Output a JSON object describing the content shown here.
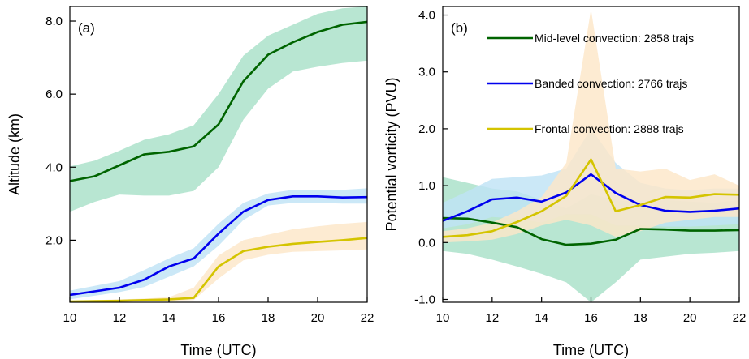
{
  "chart_data": [
    {
      "type": "line",
      "panel_label": "(a)",
      "xlabel": "Time (UTC)",
      "ylabel": "Altitude (km)",
      "xlim": [
        10,
        22
      ],
      "ylim": [
        0.3,
        8.4
      ],
      "xticks": [
        10,
        12,
        14,
        16,
        18,
        20,
        22
      ],
      "xtick_labels": [
        "10",
        "12",
        "14",
        "16",
        "18",
        "20",
        "22"
      ],
      "yticks": [
        2,
        4,
        6,
        8
      ],
      "ytick_labels": [
        "2.0",
        "4.0",
        "6.0",
        "8.0"
      ],
      "grid": false,
      "x": [
        10,
        11,
        12,
        13,
        14,
        15,
        16,
        17,
        18,
        19,
        20,
        21,
        22
      ],
      "series": [
        {
          "color": "#006400",
          "band_color": "#a8e0c8",
          "values": [
            3.62,
            3.75,
            4.05,
            4.35,
            4.42,
            4.57,
            5.17,
            6.35,
            7.08,
            7.42,
            7.7,
            7.9,
            7.98
          ],
          "lower": [
            2.78,
            3.05,
            3.25,
            3.22,
            3.22,
            3.35,
            4.0,
            5.3,
            6.15,
            6.62,
            6.75,
            6.85,
            6.92
          ],
          "upper": [
            4.02,
            4.18,
            4.45,
            4.75,
            4.9,
            5.15,
            6.0,
            7.05,
            7.6,
            7.9,
            8.2,
            8.35,
            8.4
          ]
        },
        {
          "color": "#0000ee",
          "band_color": "#bfe3f5",
          "values": [
            0.5,
            0.6,
            0.7,
            0.92,
            1.28,
            1.5,
            2.18,
            2.78,
            3.1,
            3.2,
            3.2,
            3.17,
            3.18
          ],
          "lower": [
            0.38,
            0.48,
            0.58,
            0.72,
            1.0,
            1.28,
            1.85,
            2.55,
            2.95,
            3.02,
            3.02,
            3.0,
            3.0
          ],
          "upper": [
            0.62,
            0.75,
            0.88,
            1.18,
            1.5,
            1.78,
            2.45,
            3.02,
            3.28,
            3.38,
            3.38,
            3.38,
            3.42
          ]
        },
        {
          "color": "#d4c400",
          "band_color": "#fde6c8",
          "values": [
            0.32,
            0.33,
            0.34,
            0.36,
            0.38,
            0.42,
            1.28,
            1.7,
            1.82,
            1.9,
            1.95,
            2.0,
            2.06
          ],
          "lower": [
            0.3,
            0.3,
            0.3,
            0.32,
            0.34,
            0.36,
            0.95,
            1.45,
            1.6,
            1.68,
            1.7,
            1.72,
            1.75
          ],
          "upper": [
            0.34,
            0.36,
            0.38,
            0.4,
            0.44,
            0.7,
            1.58,
            2.0,
            2.15,
            2.3,
            2.38,
            2.45,
            2.5
          ]
        }
      ]
    },
    {
      "type": "line",
      "panel_label": "(b)",
      "xlabel": "Time (UTC)",
      "ylabel": "Potential vorticity (PVU)",
      "xlim": [
        10,
        22
      ],
      "ylim": [
        -1.05,
        4.15
      ],
      "xticks": [
        10,
        12,
        14,
        16,
        18,
        20,
        22
      ],
      "xtick_labels": [
        "10",
        "12",
        "14",
        "16",
        "18",
        "20",
        "22"
      ],
      "yticks": [
        -1,
        0,
        1,
        2,
        3,
        4
      ],
      "ytick_labels": [
        "-1.0",
        "0.0",
        "1.0",
        "2.0",
        "3.0",
        "4.0"
      ],
      "grid": false,
      "legend_position": "top-right",
      "x": [
        10,
        11,
        12,
        13,
        14,
        15,
        16,
        17,
        18,
        19,
        20,
        21,
        22
      ],
      "series": [
        {
          "name": "Mid-level convection: 2858 trajs",
          "color": "#006400",
          "band_color": "#a8e0c8",
          "values": [
            0.43,
            0.42,
            0.35,
            0.27,
            0.06,
            -0.04,
            -0.02,
            0.05,
            0.24,
            0.23,
            0.21,
            0.21,
            0.22
          ],
          "lower": [
            -0.15,
            -0.2,
            -0.3,
            -0.42,
            -0.55,
            -0.7,
            -1.05,
            -0.7,
            -0.3,
            -0.25,
            -0.2,
            -0.18,
            -0.15
          ],
          "upper": [
            1.15,
            1.05,
            0.95,
            0.9,
            0.75,
            0.6,
            0.85,
            0.75,
            0.7,
            0.75,
            0.72,
            0.7,
            0.75
          ]
        },
        {
          "name": "Banded convection: 2766 trajs",
          "color": "#0000ee",
          "band_color": "#bfe3f5",
          "values": [
            0.38,
            0.55,
            0.76,
            0.79,
            0.72,
            0.88,
            1.2,
            0.87,
            0.66,
            0.56,
            0.54,
            0.56,
            0.6
          ],
          "lower": [
            0.25,
            0.32,
            0.45,
            0.42,
            0.35,
            0.5,
            0.5,
            0.3,
            0.3,
            0.28,
            0.28,
            0.3,
            0.32
          ],
          "upper": [
            0.7,
            0.9,
            1.12,
            1.15,
            1.18,
            1.3,
            2.0,
            1.4,
            1.05,
            0.95,
            0.92,
            0.95,
            0.95
          ]
        },
        {
          "name": "Frontal convection: 2888 trajs",
          "color": "#d4c400",
          "band_color": "#fde6c8",
          "values": [
            0.1,
            0.13,
            0.2,
            0.36,
            0.55,
            0.82,
            1.46,
            0.55,
            0.66,
            0.8,
            0.79,
            0.85,
            0.84
          ],
          "lower": [
            0.0,
            0.02,
            0.05,
            0.15,
            0.3,
            0.4,
            0.3,
            0.1,
            0.2,
            0.35,
            0.4,
            0.45,
            0.45
          ],
          "upper": [
            0.2,
            0.25,
            0.35,
            0.55,
            0.8,
            1.4,
            4.1,
            1.3,
            1.25,
            1.3,
            1.1,
            1.2,
            1.0
          ]
        }
      ]
    }
  ]
}
